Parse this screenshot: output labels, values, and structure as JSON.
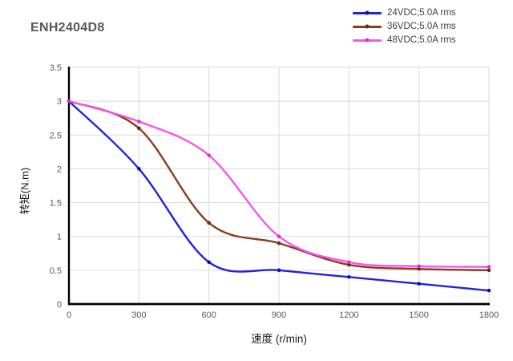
{
  "page": {
    "background": "#ffffff"
  },
  "colors": {
    "grid": "#d9d9d9",
    "axis": "#000000",
    "tick_text": "#595959",
    "title_text": "#595959",
    "legend_text": "#3f3f3f",
    "axis_label_text": "#1a1a1a"
  },
  "chart_data": {
    "type": "line",
    "title": "ENH2404D8",
    "xlabel": "速度 (r/min)",
    "ylabel": "转矩(N.m)",
    "x": [
      0,
      300,
      600,
      900,
      1200,
      1500,
      1800
    ],
    "xticks": [
      "0",
      "300",
      "600",
      "900",
      "1200",
      "1500",
      "1800"
    ],
    "yticks": [
      "0",
      "0.5",
      "1",
      "1.5",
      "2",
      "2.5",
      "3",
      "3.5"
    ],
    "ytick_values": [
      0,
      0.5,
      1,
      1.5,
      2,
      2.5,
      3,
      3.5
    ],
    "xlim": [
      0,
      1800
    ],
    "ylim": [
      0,
      3.5
    ],
    "grid": true,
    "smooth": true,
    "legend_position": "top-right",
    "series": [
      {
        "name": "24VDC;5.0A rms",
        "color": "#2222dd",
        "marker_color": "#1111a8",
        "values": [
          3.0,
          2.0,
          0.62,
          0.5,
          0.4,
          0.3,
          0.2
        ]
      },
      {
        "name": "36VDC;5.0A rms",
        "color": "#8c3b1b",
        "marker_color": "#6f2a10",
        "values": [
          3.0,
          2.6,
          1.2,
          0.9,
          0.58,
          0.52,
          0.5
        ]
      },
      {
        "name": "48VDC;5.0A rms",
        "color": "#f655ef",
        "marker_color": "#d633cf",
        "values": [
          3.0,
          2.7,
          2.2,
          1.0,
          0.62,
          0.56,
          0.55
        ]
      }
    ]
  }
}
